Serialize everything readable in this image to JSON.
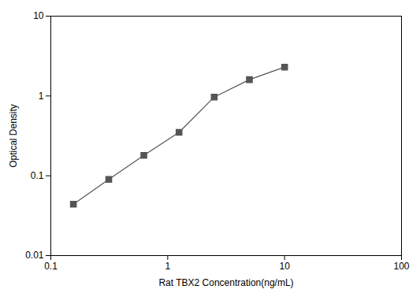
{
  "chart_data": {
    "type": "line",
    "log": true,
    "x": [
      0.156,
      0.313,
      0.625,
      1.25,
      2.5,
      5.0,
      10.0
    ],
    "values": [
      0.044,
      0.09,
      0.18,
      0.35,
      0.97,
      1.6,
      2.3
    ],
    "xlabel": "Rat TBX2 Concentration(ng/mL)",
    "ylabel": "Optical Density",
    "xlim": [
      0.1,
      100
    ],
    "ylim": [
      0.01,
      10
    ],
    "xticks": [
      0.1,
      1,
      10,
      100
    ],
    "yticks": [
      0.01,
      0.1,
      1,
      10
    ],
    "color": "#555555",
    "marker": "square",
    "grid": false
  }
}
